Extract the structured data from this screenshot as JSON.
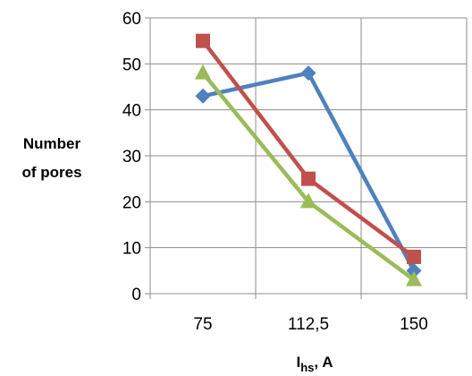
{
  "chart_data": {
    "type": "line",
    "title": "",
    "ylabel_line1": "Number",
    "ylabel_line2": "of pores",
    "xlabel_main": "I",
    "xlabel_sub": "hs",
    "xlabel_suffix": ", A",
    "categories": [
      "75",
      "112,5",
      "150"
    ],
    "ylim": [
      0,
      60
    ],
    "yticks": [
      0,
      10,
      20,
      30,
      40,
      50,
      60
    ],
    "grid": true,
    "legend": "none",
    "series": [
      {
        "color": "#4F81BD",
        "marker": "diamond",
        "values": [
          43,
          48,
          5
        ]
      },
      {
        "color": "#C0504D",
        "marker": "square",
        "values": [
          55,
          25,
          8
        ]
      },
      {
        "color": "#9BBB59",
        "marker": "triangle",
        "values": [
          48,
          20,
          3
        ]
      }
    ]
  }
}
